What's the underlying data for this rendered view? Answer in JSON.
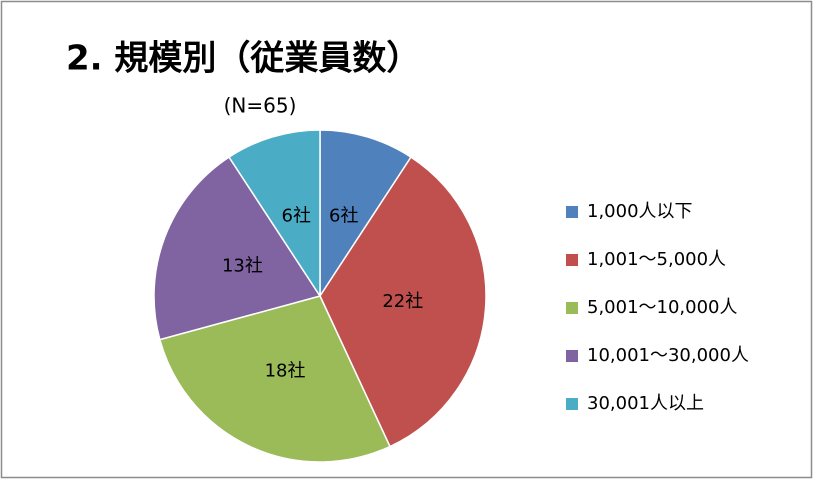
{
  "chart_data": {
    "type": "pie",
    "title": "2. 規模別（従業員数）",
    "subtitle": "(N=65)",
    "categories": [
      "1,000人以下",
      "1,001～5,000人",
      "5,001～10,000人",
      "10,001～30,000人",
      "30,001人以上"
    ],
    "values": [
      6,
      22,
      18,
      13,
      6
    ],
    "value_labels": [
      "6社",
      "22社",
      "18社",
      "13社",
      "6社"
    ],
    "colors": [
      "#4f81bd",
      "#c0504d",
      "#9bbb59",
      "#8064a2",
      "#4bacc6"
    ],
    "legend": "right"
  }
}
